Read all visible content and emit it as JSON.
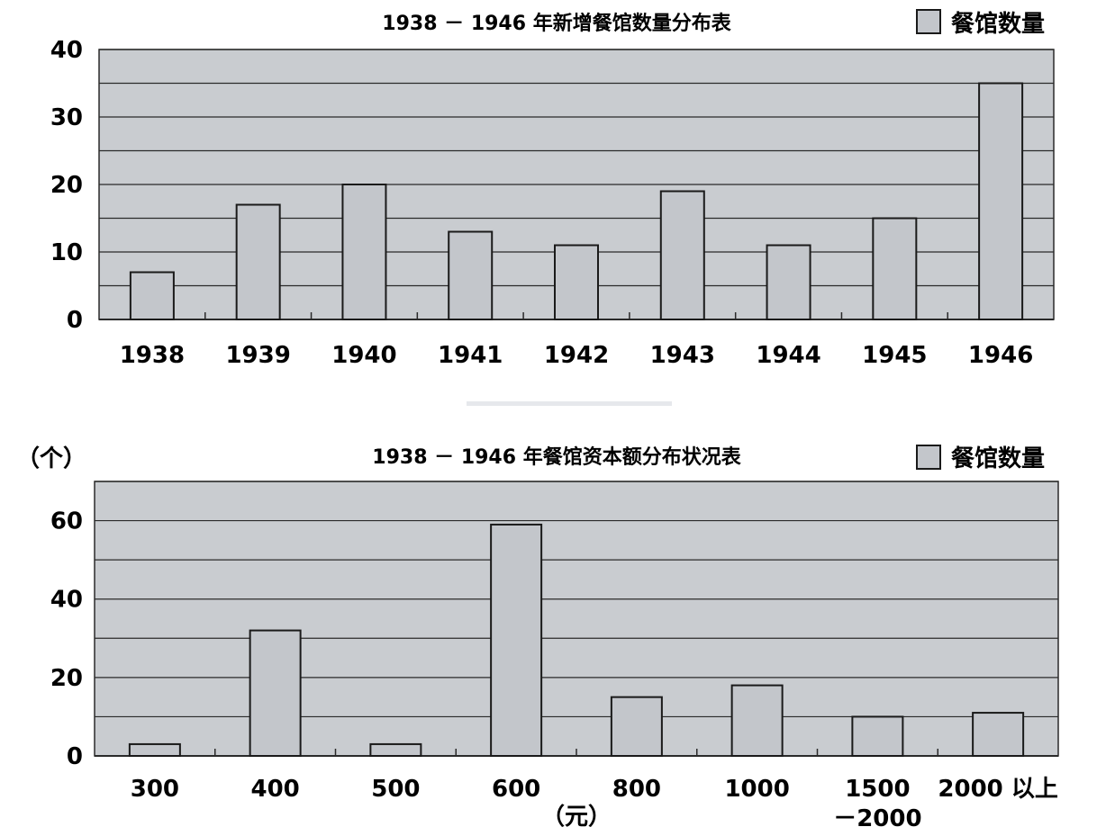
{
  "chart_data": [
    {
      "type": "bar",
      "title": "1938 － 1946 年新增餐馆数量分布表",
      "categories": [
        "1938",
        "1939",
        "1940",
        "1941",
        "1942",
        "1943",
        "1944",
        "1945",
        "1946"
      ],
      "series": [
        {
          "name": "餐馆数量",
          "values": [
            7,
            17,
            20,
            13,
            11,
            19,
            11,
            15,
            35
          ]
        }
      ],
      "ylim": [
        0,
        40
      ],
      "yticks": [
        "0",
        "10",
        "20",
        "30",
        "40"
      ],
      "grid": true,
      "legend": "top-right"
    },
    {
      "type": "bar",
      "title": "1938 － 1946 年餐馆资本额分布状况表",
      "categories": [
        "300",
        "400",
        "500",
        "600",
        "800",
        "1000",
        "1500\n－2000",
        "2000 以上"
      ],
      "series": [
        {
          "name": "餐馆数量",
          "values": [
            3,
            32,
            3,
            59,
            15,
            18,
            10,
            11
          ]
        }
      ],
      "ylim": [
        0,
        70
      ],
      "yticks": [
        "0",
        "20",
        "40",
        "60"
      ],
      "ylabel": "（个）",
      "xlabel": "（元）",
      "grid": true,
      "legend": "top-right"
    }
  ],
  "colors": {
    "plot_bg": "#c9ccd0",
    "bar_fill": "#c3c6cb",
    "bar_stroke": "#1a1a1a",
    "grid": "#2a2a2a"
  }
}
